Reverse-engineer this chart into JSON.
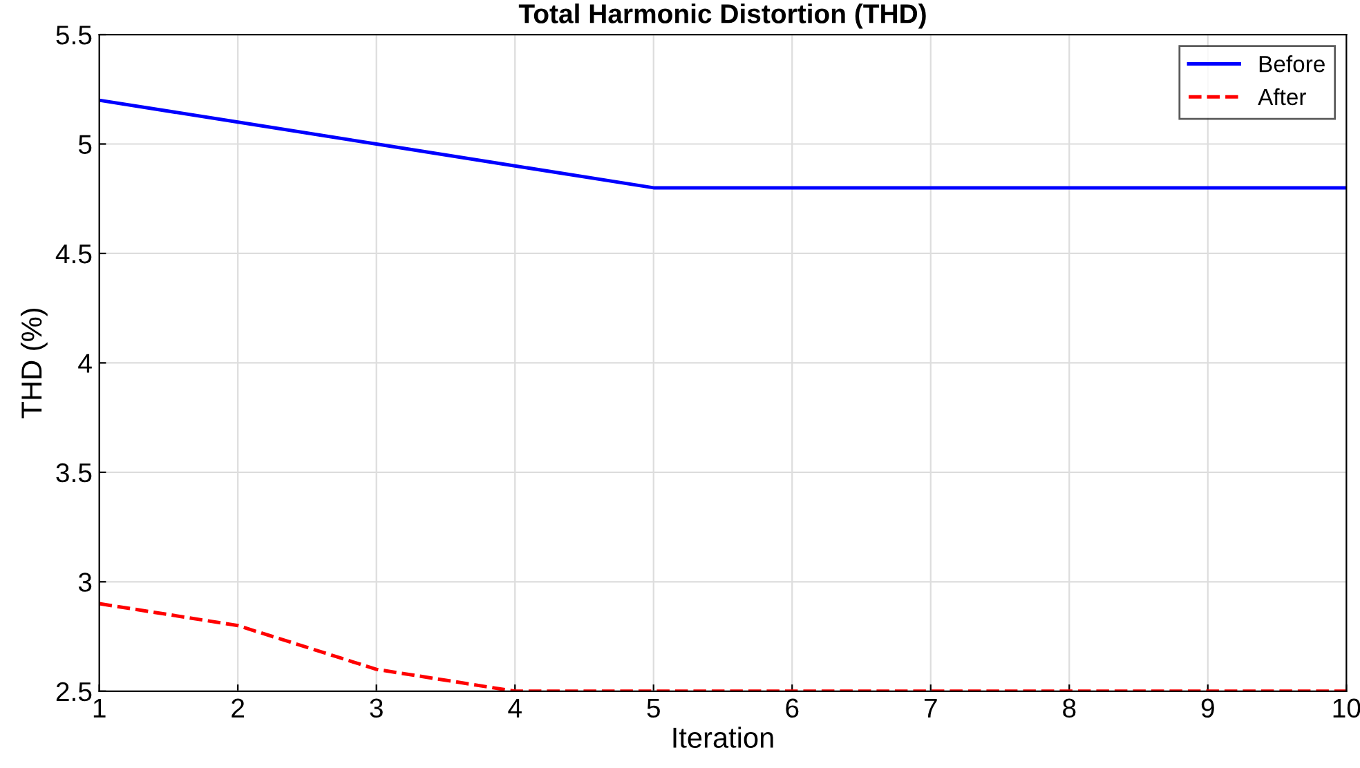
{
  "chart_data": {
    "type": "line",
    "title": "Total Harmonic Distortion (THD)",
    "xlabel": "Iteration",
    "ylabel": "THD (%)",
    "x": [
      1,
      2,
      3,
      4,
      5,
      6,
      7,
      8,
      9,
      10
    ],
    "series": [
      {
        "name": "Before",
        "color": "#0000ff",
        "line_style": "solid",
        "values": [
          5.2,
          5.1,
          5.0,
          4.9,
          4.8,
          4.8,
          4.8,
          4.8,
          4.8,
          4.8
        ]
      },
      {
        "name": "After",
        "color": "#ff0000",
        "line_style": "dashed",
        "values": [
          2.9,
          2.8,
          2.6,
          2.5,
          2.5,
          2.5,
          2.5,
          2.5,
          2.5,
          2.5
        ]
      }
    ],
    "xlim": [
      1,
      10
    ],
    "ylim": [
      2.5,
      5.5
    ],
    "xticks": [
      1,
      2,
      3,
      4,
      5,
      6,
      7,
      8,
      9,
      10
    ],
    "yticks": [
      2.5,
      3,
      3.5,
      4,
      4.5,
      5,
      5.5
    ],
    "grid": true,
    "legend": "top right",
    "marker": "none"
  }
}
